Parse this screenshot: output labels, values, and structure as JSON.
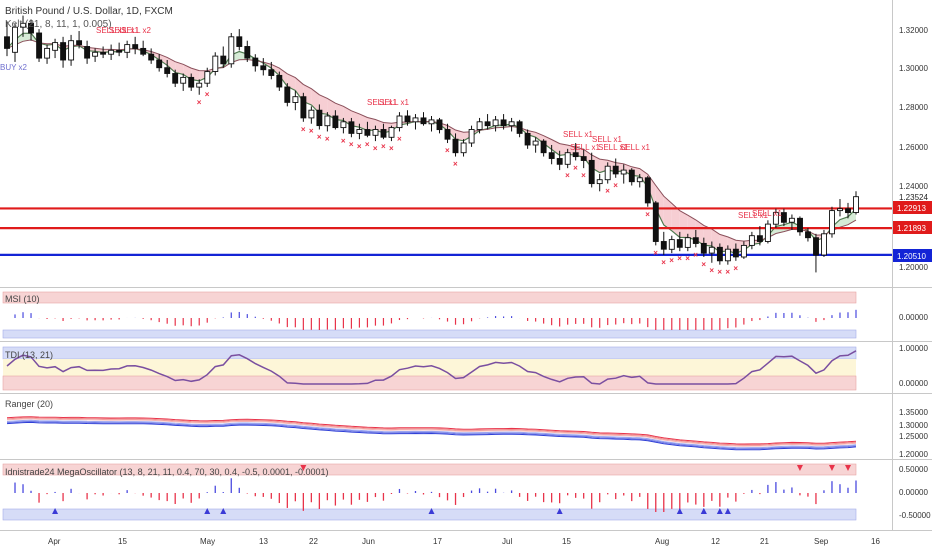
{
  "header": {
    "symbol_title": "British Pound / U.S. Dollar, 1D, FXCM",
    "keltner_label": "Kelt (21, 8, 11, 1, 0.005)"
  },
  "colors": {
    "resistance": "#e01b1b",
    "support": "#1324d6",
    "bull_candle": "#ffffff",
    "bear_candle": "#111111",
    "sell_marker": "#e8334a",
    "buy_marker": "#6f6fcf",
    "cloud_down": "#f5c6cb",
    "cloud_up": "#cfe8cf",
    "panel_red": "#f7d4d4",
    "panel_blue": "#d6dcf7",
    "panel_yellow": "#fdf6d8"
  },
  "price_axis": [
    "1.32000",
    "1.30000",
    "1.28000",
    "1.26000",
    "1.24000",
    "1.20000"
  ],
  "price_label_last": "1.23524",
  "levels": [
    {
      "name": "resistance-1",
      "value": "1.22913",
      "color": "#e01b1b"
    },
    {
      "name": "resistance-2",
      "value": "1.21893",
      "color": "#e01b1b"
    },
    {
      "name": "support-1",
      "value": "1.20510",
      "color": "#1324d6"
    }
  ],
  "signal_labels": {
    "buy": "BUY x2",
    "sells": [
      "SELL x1",
      "SELL x1",
      "SELL x1",
      "SELL x2",
      "SELL x1",
      "SELL x1",
      "SELL x1",
      "SELL x1",
      "SELL x1",
      "SELL x1",
      "SELL x1",
      "SELL x1",
      "SELL x1",
      "SELL x1"
    ]
  },
  "time_axis": [
    "Apr",
    "15",
    "May",
    "13",
    "22",
    "Jun",
    "17",
    "Jul",
    "15",
    "Aug",
    "12",
    "21",
    "Sep",
    "16"
  ],
  "panels": {
    "msi": {
      "title": "MSI (10)",
      "axis": [
        "0.00000"
      ]
    },
    "tdi": {
      "title": "TDI (13, 21)",
      "axis": [
        "1.00000",
        "0.00000"
      ]
    },
    "ranger": {
      "title": "Ranger (20)",
      "axis": [
        "1.35000",
        "1.30000",
        "1.25000",
        "1.20000"
      ]
    },
    "mega": {
      "title": "Idnistrade24 MegaOscillator (13, 8, 21, 11, 0.4, 70, 30, 0.4, -0.5, 0.0001, -0.0001)",
      "axis": [
        "0.50000",
        "0.00000",
        "-0.50000"
      ]
    }
  },
  "chart_data": {
    "type": "candlestick",
    "title": "British Pound / U.S. Dollar, 1D, FXCM",
    "ylim": [
      1.19,
      1.335
    ],
    "candles": [
      [
        1.318,
        1.326,
        1.308,
        1.312
      ],
      [
        1.31,
        1.325,
        1.305,
        1.323
      ],
      [
        1.323,
        1.329,
        1.318,
        1.325
      ],
      [
        1.325,
        1.327,
        1.316,
        1.32
      ],
      [
        1.32,
        1.322,
        1.305,
        1.307
      ],
      [
        1.307,
        1.314,
        1.304,
        1.312
      ],
      [
        1.311,
        1.317,
        1.307,
        1.315
      ],
      [
        1.315,
        1.318,
        1.302,
        1.306
      ],
      [
        1.306,
        1.319,
        1.303,
        1.316
      ],
      [
        1.316,
        1.321,
        1.312,
        1.314
      ],
      [
        1.313,
        1.316,
        1.304,
        1.307
      ],
      [
        1.308,
        1.312,
        1.305,
        1.31
      ],
      [
        1.31,
        1.313,
        1.307,
        1.309
      ],
      [
        1.309,
        1.314,
        1.306,
        1.311
      ],
      [
        1.311,
        1.315,
        1.308,
        1.31
      ],
      [
        1.31,
        1.316,
        1.307,
        1.314
      ],
      [
        1.314,
        1.318,
        1.309,
        1.312
      ],
      [
        1.312,
        1.316,
        1.308,
        1.309
      ],
      [
        1.309,
        1.312,
        1.304,
        1.306
      ],
      [
        1.306,
        1.309,
        1.3,
        1.302
      ],
      [
        1.302,
        1.306,
        1.297,
        1.299
      ],
      [
        1.299,
        1.301,
        1.292,
        1.294
      ],
      [
        1.294,
        1.299,
        1.29,
        1.297
      ],
      [
        1.297,
        1.299,
        1.29,
        1.292
      ],
      [
        1.292,
        1.296,
        1.288,
        1.294
      ],
      [
        1.294,
        1.302,
        1.292,
        1.3
      ],
      [
        1.3,
        1.31,
        1.298,
        1.308
      ],
      [
        1.308,
        1.313,
        1.302,
        1.304
      ],
      [
        1.304,
        1.32,
        1.302,
        1.318
      ],
      [
        1.318,
        1.322,
        1.311,
        1.313
      ],
      [
        1.313,
        1.316,
        1.305,
        1.307
      ],
      [
        1.307,
        1.309,
        1.3,
        1.303
      ],
      [
        1.303,
        1.307,
        1.298,
        1.301
      ],
      [
        1.301,
        1.305,
        1.296,
        1.298
      ],
      [
        1.298,
        1.3,
        1.29,
        1.292
      ],
      [
        1.292,
        1.294,
        1.282,
        1.284
      ],
      [
        1.284,
        1.29,
        1.28,
        1.287
      ],
      [
        1.287,
        1.289,
        1.274,
        1.276
      ],
      [
        1.276,
        1.282,
        1.273,
        1.28
      ],
      [
        1.28,
        1.283,
        1.27,
        1.272
      ],
      [
        1.272,
        1.279,
        1.269,
        1.277
      ],
      [
        1.277,
        1.28,
        1.27,
        1.271
      ],
      [
        1.271,
        1.276,
        1.268,
        1.274
      ],
      [
        1.274,
        1.276,
        1.266,
        1.268
      ],
      [
        1.268,
        1.273,
        1.265,
        1.27
      ],
      [
        1.27,
        1.274,
        1.266,
        1.267
      ],
      [
        1.267,
        1.272,
        1.264,
        1.27
      ],
      [
        1.27,
        1.273,
        1.265,
        1.266
      ],
      [
        1.266,
        1.272,
        1.264,
        1.271
      ],
      [
        1.271,
        1.279,
        1.269,
        1.277
      ],
      [
        1.277,
        1.28,
        1.272,
        1.274
      ],
      [
        1.274,
        1.278,
        1.27,
        1.276
      ],
      [
        1.276,
        1.279,
        1.272,
        1.273
      ],
      [
        1.273,
        1.277,
        1.269,
        1.275
      ],
      [
        1.275,
        1.276,
        1.268,
        1.27
      ],
      [
        1.27,
        1.273,
        1.263,
        1.265
      ],
      [
        1.265,
        1.268,
        1.256,
        1.258
      ],
      [
        1.258,
        1.265,
        1.256,
        1.263
      ],
      [
        1.263,
        1.272,
        1.261,
        1.27
      ],
      [
        1.27,
        1.276,
        1.268,
        1.274
      ],
      [
        1.274,
        1.278,
        1.27,
        1.272
      ],
      [
        1.272,
        1.277,
        1.269,
        1.275
      ],
      [
        1.275,
        1.278,
        1.27,
        1.272
      ],
      [
        1.272,
        1.276,
        1.269,
        1.274
      ],
      [
        1.274,
        1.275,
        1.266,
        1.268
      ],
      [
        1.268,
        1.27,
        1.26,
        1.262
      ],
      [
        1.262,
        1.266,
        1.258,
        1.264
      ],
      [
        1.264,
        1.265,
        1.256,
        1.258
      ],
      [
        1.258,
        1.262,
        1.252,
        1.255
      ],
      [
        1.255,
        1.259,
        1.249,
        1.252
      ],
      [
        1.252,
        1.26,
        1.25,
        1.258
      ],
      [
        1.258,
        1.263,
        1.254,
        1.256
      ],
      [
        1.256,
        1.26,
        1.25,
        1.254
      ],
      [
        1.254,
        1.258,
        1.24,
        1.242
      ],
      [
        1.242,
        1.247,
        1.238,
        1.244
      ],
      [
        1.244,
        1.253,
        1.242,
        1.251
      ],
      [
        1.251,
        1.255,
        1.245,
        1.247
      ],
      [
        1.247,
        1.252,
        1.242,
        1.249
      ],
      [
        1.249,
        1.25,
        1.241,
        1.243
      ],
      [
        1.243,
        1.247,
        1.24,
        1.245
      ],
      [
        1.245,
        1.246,
        1.23,
        1.232
      ],
      [
        1.232,
        1.233,
        1.21,
        1.212
      ],
      [
        1.212,
        1.217,
        1.205,
        1.208
      ],
      [
        1.208,
        1.215,
        1.206,
        1.213
      ],
      [
        1.213,
        1.217,
        1.207,
        1.209
      ],
      [
        1.209,
        1.216,
        1.207,
        1.214
      ],
      [
        1.214,
        1.218,
        1.209,
        1.211
      ],
      [
        1.211,
        1.214,
        1.204,
        1.206
      ],
      [
        1.206,
        1.212,
        1.201,
        1.209
      ],
      [
        1.209,
        1.211,
        1.2,
        1.202
      ],
      [
        1.202,
        1.21,
        1.2,
        1.208
      ],
      [
        1.208,
        1.211,
        1.202,
        1.204
      ],
      [
        1.204,
        1.212,
        1.203,
        1.21
      ],
      [
        1.21,
        1.217,
        1.208,
        1.215
      ],
      [
        1.215,
        1.22,
        1.21,
        1.212
      ],
      [
        1.212,
        1.223,
        1.211,
        1.221
      ],
      [
        1.221,
        1.229,
        1.219,
        1.227
      ],
      [
        1.227,
        1.229,
        1.22,
        1.222
      ],
      [
        1.222,
        1.226,
        1.218,
        1.224
      ],
      [
        1.224,
        1.225,
        1.215,
        1.217
      ],
      [
        1.217,
        1.219,
        1.212,
        1.214
      ],
      [
        1.214,
        1.216,
        1.196,
        1.205
      ],
      [
        1.205,
        1.218,
        1.204,
        1.216
      ],
      [
        1.216,
        1.23,
        1.214,
        1.228
      ],
      [
        1.228,
        1.234,
        1.225,
        1.229
      ],
      [
        1.229,
        1.232,
        1.224,
        1.227
      ],
      [
        1.227,
        1.238,
        1.226,
        1.2352
      ]
    ],
    "levels": [
      1.22913,
      1.21893,
      1.2051
    ]
  }
}
